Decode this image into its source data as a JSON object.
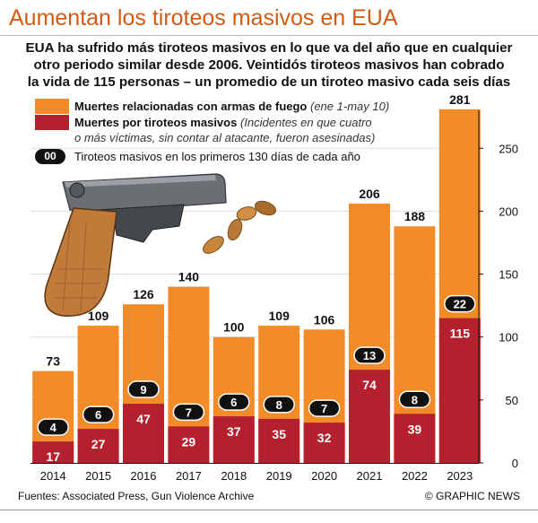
{
  "header": {
    "title": "Aumentan los tiroteos masivos en EUA",
    "subtitle_lines": [
      "EUA ha sufrido más tiroteos masivos en lo que va del año que en cualquier",
      "otro periodo similar desde 2006. Veintidós tiroteos masivos han cobrado",
      "la vida de 115 personas – un promedio de un tiroteo masivo cada seis días"
    ]
  },
  "legend": {
    "gun_deaths_bold": "Muertes relacionadas con armas de fuego",
    "gun_deaths_note": "(ene 1-may 10)",
    "mass_deaths_bold": "Muertes por tiroteos masivos",
    "mass_deaths_note_1": "(Incidentes en que cuatro",
    "mass_deaths_note_2": "o más víctimas, sin contar al atacante, fueron asesinadas)",
    "pill_label": "00",
    "shootings_label": "Tiroteos masivos en los primeros 130 días de cada año"
  },
  "footer": {
    "source": "Fuentes: Associated Press, Gun Violence Archive",
    "credit": "© GRAPHIC NEWS"
  },
  "colors": {
    "title": "#d35a13",
    "orange": "#f28c28",
    "red": "#b5202e",
    "pill": "#111111",
    "grid": "#dddddd"
  },
  "icons": {
    "pistol": "pistol-illustration",
    "bullets": "bullets-illustration"
  },
  "chart_data": {
    "type": "bar",
    "categories": [
      "2014",
      "2015",
      "2016",
      "2017",
      "2018",
      "2019",
      "2020",
      "2021",
      "2022",
      "2023"
    ],
    "series": [
      {
        "name": "Muertes relacionadas con armas de fuego",
        "values": [
          73,
          109,
          126,
          140,
          100,
          109,
          106,
          206,
          188,
          281
        ]
      },
      {
        "name": "Muertes por tiroteos masivos",
        "values": [
          17,
          27,
          47,
          29,
          37,
          35,
          32,
          74,
          39,
          115
        ]
      },
      {
        "name": "Tiroteos masivos en los primeros 130 días de cada año",
        "values": [
          4,
          6,
          9,
          7,
          6,
          8,
          7,
          13,
          8,
          22
        ]
      }
    ],
    "ylim": [
      0,
      280
    ],
    "yticks": [
      0,
      50,
      100,
      150,
      200,
      250
    ],
    "xlabel": "",
    "ylabel": "",
    "grid": true,
    "legend_position": "top-left"
  }
}
